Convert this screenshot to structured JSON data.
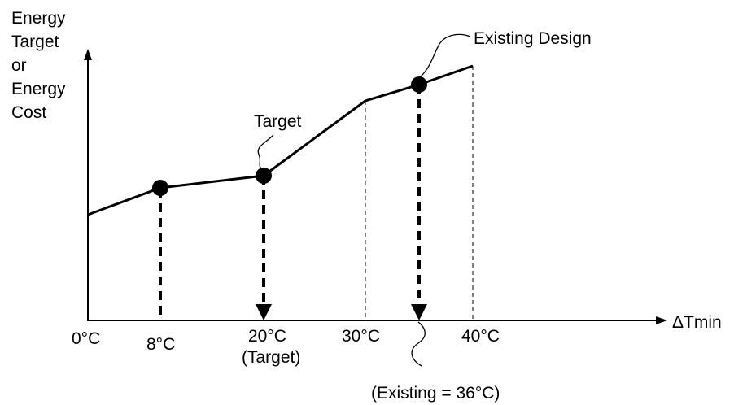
{
  "y_axis_label": [
    "Energy",
    "Target",
    "or",
    "Energy",
    "Cost"
  ],
  "x_axis_label": "ΔTmin",
  "tick_labels": {
    "t0": "0°C",
    "t8": "8°C",
    "t20": "20°C",
    "t30": "30°C",
    "t40": "40°C"
  },
  "annotations": {
    "target_sub": "(Target)",
    "existing_sub": "(Existing = 36°C)",
    "target": "Target",
    "existing_design": "Existing Design"
  },
  "curve_points_dTmin": [
    0,
    8,
    20,
    30,
    36,
    40
  ],
  "marked_points_dTmin": [
    8,
    20,
    36
  ],
  "colors": {
    "line": "#000000",
    "background": "#ffffff"
  }
}
